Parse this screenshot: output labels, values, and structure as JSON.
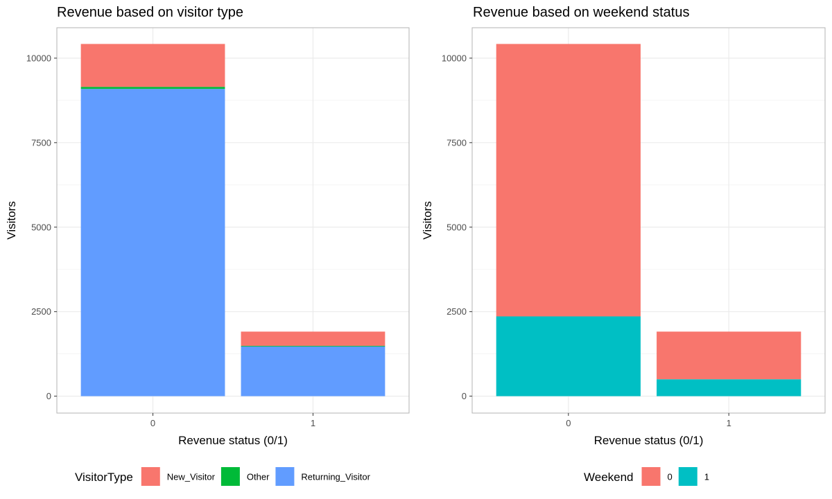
{
  "chart_data": [
    {
      "type": "bar",
      "stacked": true,
      "title": "Revenue based on visitor type",
      "xlabel": "Revenue status (0/1)",
      "ylabel": "Visitors",
      "categories": [
        "0",
        "1"
      ],
      "ylim": [
        -500,
        10900
      ],
      "yticks": [
        0,
        2500,
        5000,
        7500,
        10000
      ],
      "grid": true,
      "legend": {
        "title": "VisitorType",
        "placement": "bottom",
        "entries": [
          "New_Visitor",
          "Other",
          "Returning_Visitor"
        ]
      },
      "stack_order": [
        "Returning_Visitor",
        "Other",
        "New_Visitor"
      ],
      "series": [
        {
          "name": "New_Visitor",
          "color": "#F8766D",
          "values": [
            1270,
            420
          ]
        },
        {
          "name": "Other",
          "color": "#00BA38",
          "values": [
            60,
            20
          ]
        },
        {
          "name": "Returning_Visitor",
          "color": "#619CFF",
          "values": [
            9090,
            1470
          ]
        }
      ]
    },
    {
      "type": "bar",
      "stacked": true,
      "title": "Revenue based on weekend status",
      "xlabel": "Revenue status (0/1)",
      "ylabel": "Visitors",
      "categories": [
        "0",
        "1"
      ],
      "ylim": [
        -500,
        10900
      ],
      "yticks": [
        0,
        2500,
        5000,
        7500,
        10000
      ],
      "grid": true,
      "legend": {
        "title": "Weekend",
        "placement": "bottom",
        "entries": [
          "0",
          "1"
        ]
      },
      "stack_order": [
        "1",
        "0"
      ],
      "series": [
        {
          "name": "0",
          "color": "#F8766D",
          "values": [
            8060,
            1410
          ]
        },
        {
          "name": "1",
          "color": "#00BFC4",
          "values": [
            2360,
            500
          ]
        }
      ]
    }
  ]
}
